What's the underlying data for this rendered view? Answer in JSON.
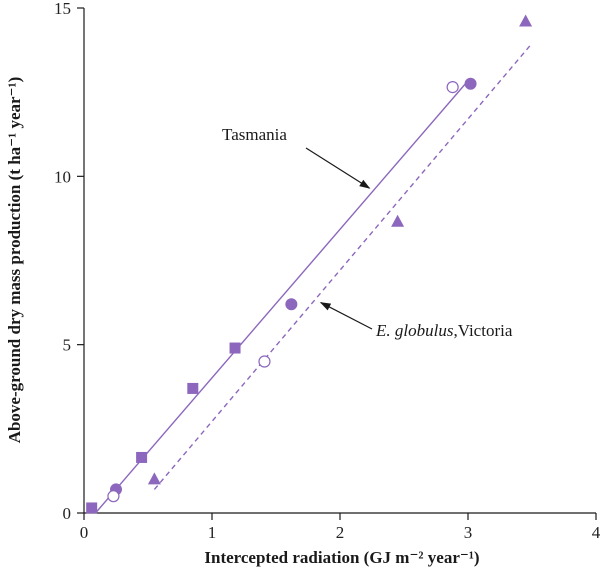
{
  "chart_data": {
    "type": "scatter",
    "xlabel": "Intercepted radiation (GJ m⁻² year⁻¹)",
    "ylabel": "Above-ground dry mass production (t ha⁻¹ year⁻¹)",
    "xlim": [
      0,
      4
    ],
    "ylim": [
      0,
      15
    ],
    "x_ticks": [
      0,
      1,
      2,
      3,
      4
    ],
    "y_ticks": [
      0,
      5,
      10,
      15
    ],
    "x_tick_labels": [
      "0",
      "1",
      "2",
      "3",
      "4"
    ],
    "y_tick_labels": [
      "0",
      "5",
      "10",
      "15"
    ],
    "color": "#8c67bd",
    "series": [
      {
        "name": "filled squares",
        "marker": "square",
        "filled": true,
        "points": [
          [
            0.06,
            0.15
          ],
          [
            0.45,
            1.65
          ],
          [
            0.85,
            3.7
          ],
          [
            1.18,
            4.9
          ]
        ]
      },
      {
        "name": "filled circles",
        "marker": "circle",
        "filled": true,
        "points": [
          [
            0.25,
            0.7
          ],
          [
            1.62,
            6.2
          ],
          [
            3.02,
            12.75
          ]
        ]
      },
      {
        "name": "open circles",
        "marker": "circle",
        "filled": false,
        "points": [
          [
            0.23,
            0.5
          ],
          [
            1.41,
            4.5
          ],
          [
            2.88,
            12.65
          ]
        ]
      },
      {
        "name": "filled triangles",
        "marker": "triangle",
        "filled": true,
        "points": [
          [
            0.55,
            1.0
          ],
          [
            2.45,
            8.65
          ],
          [
            3.45,
            14.6
          ]
        ]
      }
    ],
    "fit_lines": [
      {
        "name": "Tasmania",
        "style": "solid",
        "x": [
          0.09,
          2.98
        ],
        "y": [
          0.0,
          12.75
        ]
      },
      {
        "name": "E. globulus, Victoria",
        "style": "dashed",
        "x": [
          0.55,
          3.5
        ],
        "y": [
          0.7,
          13.95
        ]
      }
    ],
    "annotations": [
      {
        "text": "Tasmania",
        "points_to": "Tasmania",
        "target": [
          2.23,
          9.65
        ]
      },
      {
        "text_italic": "E. globulus",
        "text_rest": ",Victoria",
        "points_to": "E. globulus, Victoria",
        "target": [
          1.85,
          6.25
        ]
      }
    ]
  }
}
